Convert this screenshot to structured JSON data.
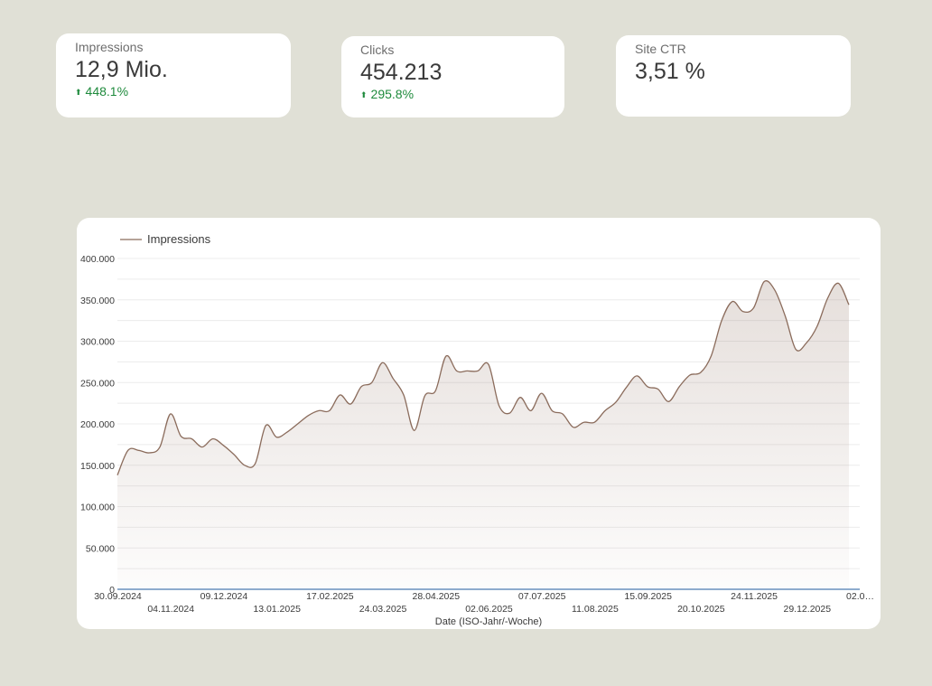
{
  "kpis": {
    "impressions": {
      "label": "Impressions",
      "value": "12,9 Mio.",
      "delta": "448.1%",
      "delta_icon": "arrow-up-icon"
    },
    "clicks": {
      "label": "Clicks",
      "value": "454.213",
      "delta": "295.8%",
      "delta_icon": "arrow-up-icon"
    },
    "ctr": {
      "label": "Site CTR",
      "value": "3,51 %"
    }
  },
  "colors": {
    "background": "#e0e0d6",
    "line": "#8b6c5c",
    "positive": "#1e8a3c",
    "baseline": "#4a7ab0"
  },
  "chart_data": {
    "type": "area",
    "legend": "top-left",
    "grid": true,
    "xlabel": "Date (ISO-Jahr/-Woche)",
    "ylabel": "",
    "ylim": [
      0,
      400000
    ],
    "y_ticks": [
      0,
      50000,
      100000,
      150000,
      200000,
      250000,
      300000,
      350000,
      400000
    ],
    "y_tick_labels": [
      "0",
      "50.000",
      "100.000",
      "150.000",
      "200.000",
      "250.000",
      "300.000",
      "350.000",
      "400.000"
    ],
    "x_tick_labels": [
      "30.09.2024",
      "04.11.2024",
      "09.12.2024",
      "13.01.2025",
      "17.02.2025",
      "24.03.2025",
      "28.04.2025",
      "02.06.2025",
      "07.07.2025",
      "11.08.2025",
      "15.09.2025",
      "20.10.2025",
      "24.11.2025",
      "29.12.2025",
      "02.0…"
    ],
    "series": [
      {
        "name": "Impressions",
        "values": [
          138000,
          168000,
          168000,
          165000,
          172000,
          212000,
          185000,
          182000,
          172000,
          182000,
          174000,
          163000,
          150000,
          152000,
          198000,
          184000,
          190000,
          200000,
          210000,
          216000,
          216000,
          235000,
          224000,
          245000,
          250000,
          274000,
          255000,
          235000,
          192000,
          234000,
          240000,
          282000,
          264000,
          264000,
          264000,
          272000,
          222000,
          213000,
          232000,
          216000,
          237000,
          216000,
          212000,
          196000,
          202000,
          202000,
          216000,
          226000,
          244000,
          258000,
          245000,
          242000,
          227000,
          245000,
          259000,
          262000,
          282000,
          325000,
          348000,
          336000,
          340000,
          372000,
          362000,
          330000,
          290000,
          298000,
          318000,
          352000,
          370000,
          344000
        ]
      }
    ]
  }
}
